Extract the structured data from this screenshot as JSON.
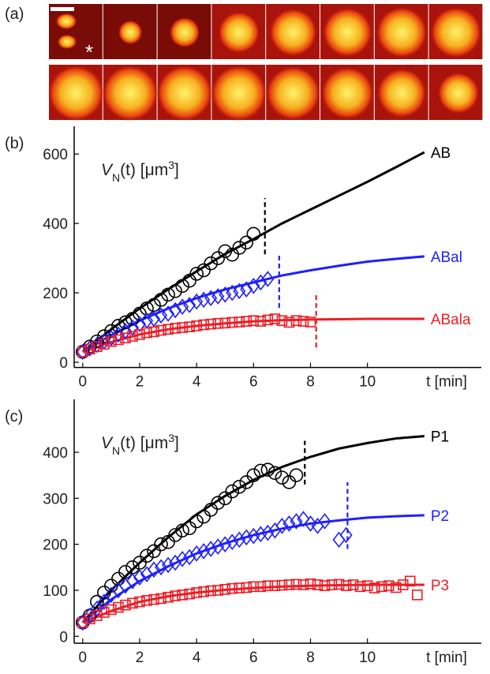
{
  "panel_a": {
    "label": "(a)",
    "marker": "*"
  },
  "chart_data": [
    {
      "type": "scatter",
      "panel_label": "(b)",
      "ylabel": [
        "V",
        "N",
        "(t) [μm",
        "3",
        "]"
      ],
      "xlabel": "t [min]",
      "xlim": [
        -0.3,
        14
      ],
      "ylim": [
        -15,
        680
      ],
      "xticks": [
        0,
        2,
        4,
        6,
        8,
        10
      ],
      "yticks": [
        0,
        200,
        400,
        600
      ],
      "fit_x": [
        0,
        1,
        2,
        3,
        4,
        5,
        6,
        7,
        8,
        9,
        10,
        11,
        12
      ],
      "series": [
        {
          "name": "AB",
          "color": "#000000",
          "marker": "circle",
          "x": [
            0,
            0.25,
            0.5,
            0.75,
            1,
            1.25,
            1.5,
            1.75,
            2,
            2.25,
            2.5,
            2.75,
            3,
            3.25,
            3.5,
            3.75,
            4,
            4.25,
            4.5,
            4.75,
            5,
            5.25,
            5.5,
            5.75,
            6
          ],
          "values": [
            30,
            45,
            60,
            75,
            90,
            105,
            115,
            125,
            140,
            155,
            165,
            180,
            195,
            205,
            220,
            235,
            255,
            265,
            285,
            300,
            320,
            310,
            330,
            345,
            370
          ],
          "fit": [
            30,
            95,
            155,
            210,
            262,
            312,
            355,
            400,
            440,
            480,
            520,
            562,
            605
          ]
        },
        {
          "name": "ABal",
          "color": "#1f1fff",
          "marker": "diamond",
          "x": [
            0,
            0.25,
            0.5,
            0.75,
            1,
            1.25,
            1.5,
            1.75,
            2,
            2.25,
            2.5,
            2.75,
            3,
            3.25,
            3.5,
            3.75,
            4,
            4.25,
            4.5,
            4.75,
            5,
            5.25,
            5.5,
            5.75,
            6,
            6.25,
            6.5
          ],
          "values": [
            30,
            40,
            50,
            60,
            70,
            80,
            90,
            100,
            110,
            120,
            125,
            135,
            140,
            150,
            160,
            165,
            175,
            180,
            185,
            190,
            195,
            200,
            205,
            210,
            220,
            230,
            240
          ],
          "fit": [
            30,
            78,
            120,
            155,
            185,
            210,
            230,
            250,
            265,
            278,
            290,
            298,
            305
          ]
        },
        {
          "name": "ABala",
          "color": "#ee1c25",
          "marker": "square",
          "x": [
            0,
            0.25,
            0.5,
            0.75,
            1,
            1.25,
            1.5,
            1.75,
            2,
            2.25,
            2.5,
            2.75,
            3,
            3.25,
            3.5,
            3.75,
            4,
            4.25,
            4.5,
            4.75,
            5,
            5.25,
            5.5,
            5.75,
            6,
            6.25,
            6.5,
            6.75,
            7,
            7.25,
            7.5,
            7.75,
            8
          ],
          "values": [
            30,
            38,
            45,
            52,
            60,
            65,
            70,
            75,
            80,
            85,
            88,
            92,
            95,
            98,
            100,
            102,
            105,
            108,
            110,
            112,
            113,
            115,
            116,
            118,
            120,
            118,
            122,
            125,
            120,
            115,
            120,
            118,
            116
          ],
          "fit": [
            30,
            58,
            80,
            95,
            105,
            112,
            118,
            121,
            123,
            124,
            125,
            125,
            125
          ]
        }
      ],
      "dividers": [
        {
          "x": 6.4,
          "y": [
            311,
            473
          ],
          "color": "#000000"
        },
        {
          "x": 6.9,
          "y": [
            157,
            316
          ],
          "color": "#1f1fff"
        },
        {
          "x": 8.2,
          "y": [
            43,
            202
          ],
          "color": "#ee1c25"
        }
      ]
    },
    {
      "type": "scatter",
      "panel_label": "(c)",
      "ylabel": [
        "V",
        "N",
        "(t) [μm",
        "3",
        "]"
      ],
      "xlabel": "t [min]",
      "xlim": [
        -0.3,
        14
      ],
      "ylim": [
        -15,
        515
      ],
      "xticks": [
        0,
        2,
        4,
        6,
        8,
        10
      ],
      "yticks": [
        0,
        100,
        200,
        300,
        400
      ],
      "fit_x": [
        0,
        1,
        2,
        3,
        4,
        5,
        6,
        7,
        8,
        9,
        10,
        11,
        12
      ],
      "series": [
        {
          "name": "P1",
          "color": "#000000",
          "marker": "circle",
          "x": [
            0,
            0.25,
            0.5,
            0.75,
            1,
            1.25,
            1.5,
            1.75,
            2,
            2.25,
            2.5,
            2.75,
            3,
            3.25,
            3.5,
            3.75,
            4,
            4.25,
            4.5,
            4.75,
            5,
            5.25,
            5.5,
            5.75,
            6,
            6.25,
            6.5,
            6.75,
            7,
            7.25,
            7.5
          ],
          "values": [
            30,
            45,
            75,
            95,
            110,
            125,
            140,
            150,
            160,
            175,
            185,
            200,
            205,
            220,
            230,
            235,
            250,
            260,
            275,
            290,
            300,
            315,
            325,
            335,
            350,
            360,
            362,
            355,
            345,
            335,
            350
          ],
          "fit": [
            30,
            100,
            160,
            215,
            265,
            305,
            340,
            368,
            390,
            408,
            420,
            430,
            435
          ]
        },
        {
          "name": "P2",
          "color": "#1f1fff",
          "marker": "diamond",
          "x": [
            0,
            0.25,
            0.5,
            0.75,
            1,
            1.25,
            1.5,
            1.75,
            2,
            2.25,
            2.5,
            2.75,
            3,
            3.25,
            3.5,
            3.75,
            4,
            4.25,
            4.5,
            4.75,
            5,
            5.25,
            5.5,
            5.75,
            6,
            6.25,
            6.5,
            6.75,
            7,
            7.25,
            7.5,
            7.75,
            8,
            8.25,
            8.5,
            9,
            9.25
          ],
          "values": [
            30,
            45,
            60,
            75,
            90,
            100,
            110,
            120,
            128,
            135,
            145,
            150,
            155,
            160,
            168,
            172,
            180,
            185,
            190,
            195,
            200,
            205,
            210,
            215,
            218,
            222,
            225,
            230,
            240,
            245,
            250,
            255,
            245,
            240,
            250,
            210,
            220
          ],
          "fit": [
            30,
            80,
            120,
            152,
            180,
            202,
            220,
            234,
            245,
            252,
            258,
            261,
            263
          ]
        },
        {
          "name": "P3",
          "color": "#ee1c25",
          "marker": "square",
          "x": [
            0,
            0.25,
            0.5,
            0.75,
            1,
            1.25,
            1.5,
            1.75,
            2,
            2.25,
            2.5,
            2.75,
            3,
            3.25,
            3.5,
            3.75,
            4,
            4.25,
            4.5,
            4.75,
            5,
            5.25,
            5.5,
            5.75,
            6,
            6.25,
            6.5,
            6.75,
            7,
            7.25,
            7.5,
            7.75,
            8,
            8.25,
            8.5,
            8.75,
            9,
            9.25,
            9.5,
            9.75,
            10,
            10.25,
            10.5,
            10.75,
            11,
            11.25,
            11.5,
            11.75
          ],
          "values": [
            30,
            38,
            45,
            52,
            58,
            63,
            68,
            72,
            75,
            78,
            80,
            82,
            85,
            88,
            90,
            92,
            95,
            97,
            99,
            100,
            102,
            104,
            105,
            106,
            108,
            108,
            110,
            110,
            111,
            112,
            113,
            112,
            114,
            112,
            110,
            112,
            113,
            110,
            112,
            108,
            110,
            105,
            108,
            110,
            106,
            112,
            120,
            90
          ],
          "fit": [
            30,
            55,
            75,
            87,
            95,
            101,
            105,
            108,
            110,
            111,
            112,
            112,
            112
          ]
        }
      ],
      "dividers": [
        {
          "x": 7.8,
          "y": [
            330,
            425
          ],
          "color": "#000000"
        },
        {
          "x": 9.3,
          "y": [
            190,
            335
          ],
          "color": "#1f1fff"
        }
      ]
    }
  ]
}
